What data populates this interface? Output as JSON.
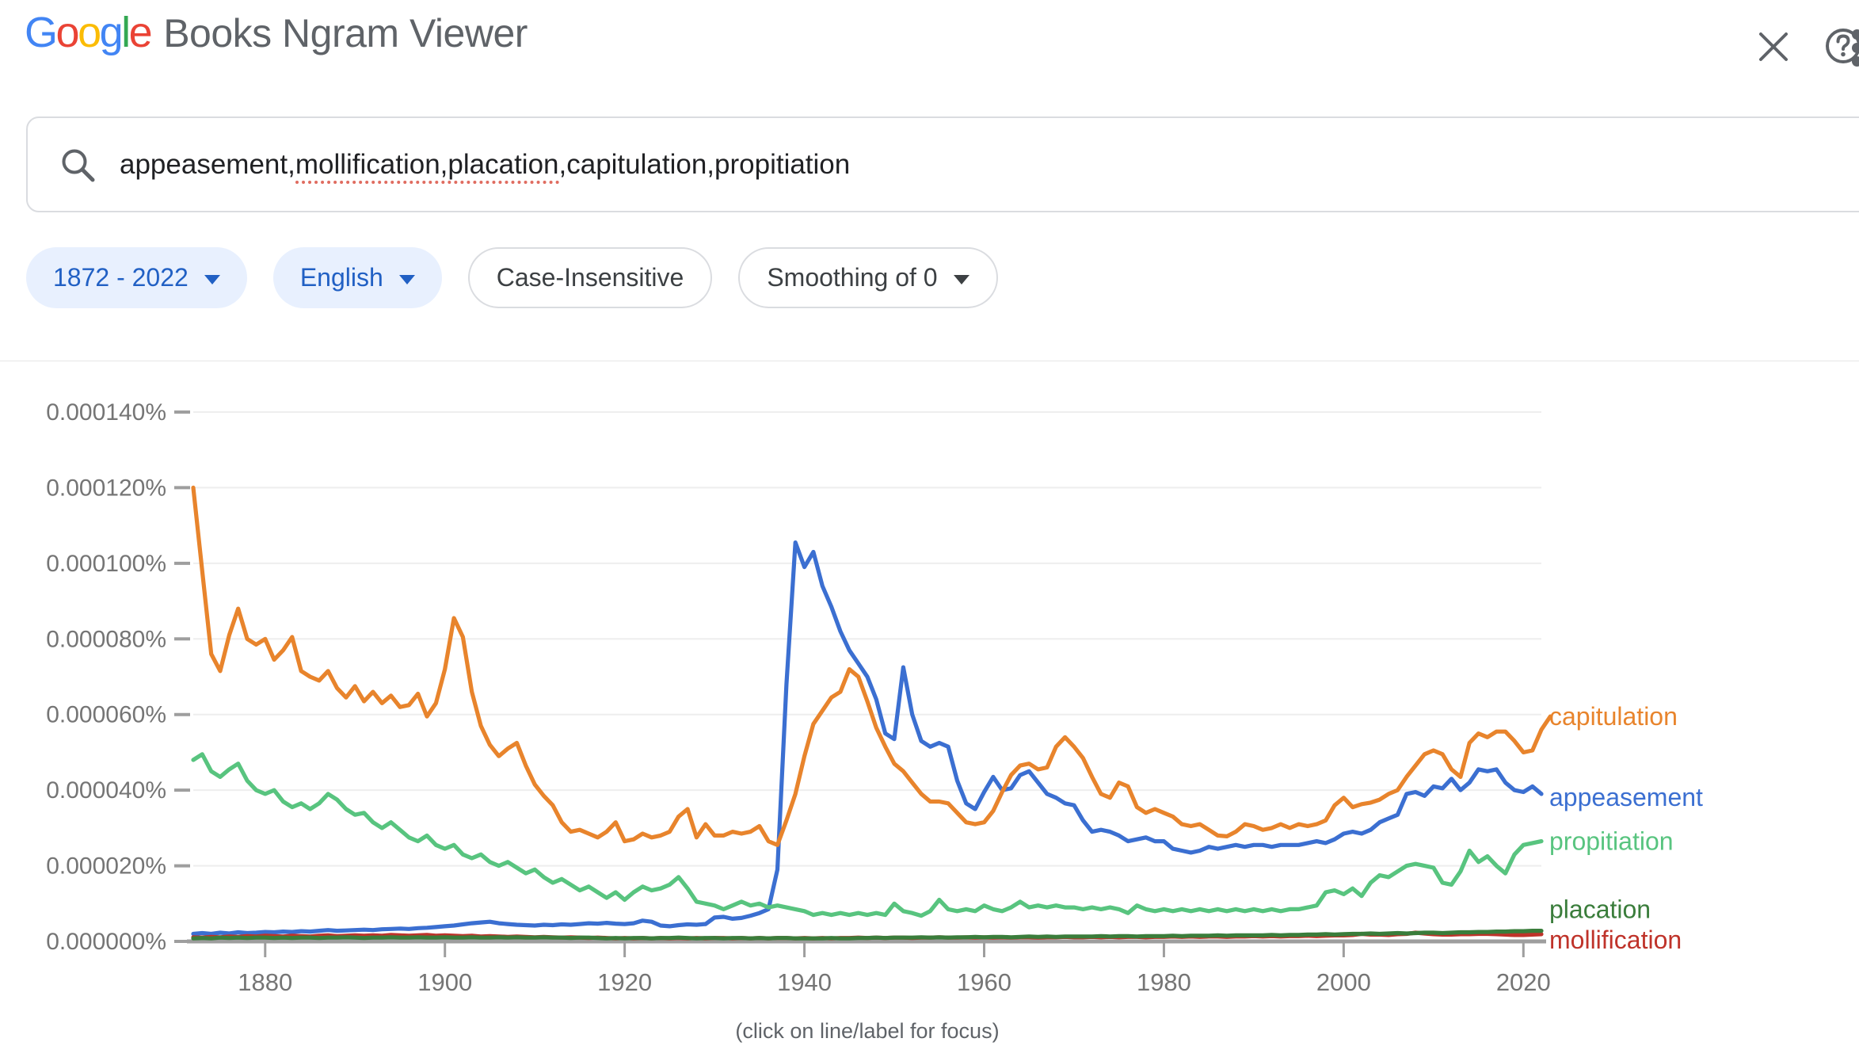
{
  "header": {
    "logo_letters": [
      {
        "ch": "G",
        "color": "#4285F4"
      },
      {
        "ch": "o",
        "color": "#EA4335"
      },
      {
        "ch": "o",
        "color": "#FBBC05"
      },
      {
        "ch": "g",
        "color": "#4285F4"
      },
      {
        "ch": "l",
        "color": "#34A853"
      },
      {
        "ch": "e",
        "color": "#EA4335"
      }
    ],
    "title": "Books Ngram Viewer"
  },
  "search": {
    "query_prefix": "appeasement,",
    "query_misspelled": "mollification,placation",
    "query_suffix": ",capitulation,propitiation"
  },
  "filters": {
    "year_range": "1872 - 2022",
    "corpus": "English",
    "case": "Case-Insensitive",
    "smoothing": "Smoothing of 0"
  },
  "colors": {
    "axis_text": "#757575",
    "axis_line": "#9e9e9e",
    "gridline": "#eeeeee",
    "icon_gray": "#5f6368",
    "chip_blue_bg": "#e8f0fe",
    "chip_blue_text": "#2160c4",
    "spellcheck_red": "#e06c60"
  },
  "chart_data": {
    "type": "line",
    "title": "",
    "xlabel": "",
    "ylabel": "",
    "x_start": 1872,
    "x_end": 2022,
    "x_ticks": [
      1880,
      1900,
      1920,
      1940,
      1960,
      1980,
      2000,
      2020
    ],
    "y_unit": "percent, values in units of 0.000001%",
    "y_max": 140,
    "y_tick_step": 20,
    "y_tick_labels": [
      "0.000000%",
      "0.000020%",
      "0.000040%",
      "0.000060%",
      "0.000080%",
      "0.000100%",
      "0.000120%",
      "0.000140%"
    ],
    "grid": true,
    "legend_position": "right-end-of-line",
    "caption": "(click on line/label for focus)",
    "series": [
      {
        "name": "appeasement",
        "color": "#3b6fd1",
        "values": [
          2,
          2.2,
          2,
          2.3,
          2.1,
          2.4,
          2.2,
          2.3,
          2.5,
          2.4,
          2.6,
          2.5,
          2.7,
          2.6,
          2.8,
          3,
          2.8,
          2.9,
          3,
          3.1,
          3,
          3.2,
          3.3,
          3.4,
          3.3,
          3.5,
          3.6,
          3.8,
          4,
          4.2,
          4.5,
          4.8,
          5,
          5.2,
          4.8,
          4.6,
          4.4,
          4.3,
          4.2,
          4.4,
          4.3,
          4.5,
          4.4,
          4.6,
          4.8,
          4.7,
          4.9,
          4.7,
          4.6,
          4.8,
          5.5,
          5.2,
          4.2,
          4,
          4.3,
          4.5,
          4.4,
          4.6,
          6.3,
          6.5,
          6,
          6.2,
          6.8,
          7.5,
          8.5,
          19,
          68,
          105.5,
          99,
          103,
          94,
          88.5,
          82,
          77,
          73.5,
          70,
          64,
          55,
          53.5,
          72.5,
          60,
          53,
          51.5,
          52.5,
          51.5,
          42.5,
          36.5,
          35,
          39.5,
          43.5,
          40,
          40.5,
          44,
          45,
          42,
          39,
          38,
          36.5,
          36,
          32,
          29,
          29.5,
          29,
          28,
          26.5,
          27,
          27.5,
          26.5,
          26.5,
          24.5,
          24,
          23.5,
          24,
          25,
          24.5,
          25,
          25.5,
          25,
          25.5,
          25.5,
          25,
          25.5,
          25.5,
          25.5,
          26,
          26.5,
          26,
          27,
          28.5,
          29,
          28.5,
          29.5,
          31.5,
          32.5,
          33.5,
          39,
          39.5,
          38.5,
          41,
          40.5,
          43,
          40,
          42,
          45.5,
          45,
          45.5,
          42,
          40,
          39.5,
          41,
          39
        ]
      },
      {
        "name": "mollification",
        "color": "#bf332a",
        "values": [
          1.1,
          1,
          1.2,
          1.1,
          1.3,
          1.2,
          1.4,
          1.3,
          1.5,
          1.4,
          1.3,
          1.5,
          1.4,
          1.3,
          1.5,
          1.6,
          1.4,
          1.5,
          1.6,
          1.5,
          1.6,
          1.5,
          1.7,
          1.6,
          1.5,
          1.6,
          1.7,
          1.5,
          1.6,
          1.5,
          1.4,
          1.5,
          1.3,
          1.4,
          1.3,
          1.2,
          1.3,
          1.2,
          1.1,
          1.2,
          1.1,
          1,
          1.1,
          1,
          0.9,
          1,
          0.9,
          0.8,
          0.9,
          0.8,
          0.9,
          0.8,
          0.9,
          0.8,
          0.9,
          0.8,
          0.9,
          0.8,
          0.9,
          0.9,
          0.8,
          0.9,
          0.8,
          0.9,
          0.8,
          0.9,
          0.9,
          0.8,
          0.9,
          0.8,
          0.9,
          0.8,
          0.9,
          0.9,
          1,
          0.9,
          1,
          0.9,
          1,
          1,
          0.9,
          1,
          1,
          1.1,
          1,
          1,
          1.1,
          1,
          1.1,
          1,
          1.1,
          1,
          1.1,
          1.1,
          1,
          1.1,
          1.1,
          1.2,
          1.1,
          1.1,
          1.2,
          1.1,
          1.2,
          1.1,
          1.2,
          1.2,
          1.1,
          1.2,
          1.2,
          1.3,
          1.2,
          1.3,
          1.2,
          1.3,
          1.3,
          1.2,
          1.3,
          1.3,
          1.4,
          1.3,
          1.4,
          1.3,
          1.4,
          1.4,
          1.5,
          1.4,
          1.5,
          1.6,
          1.6,
          1.7,
          2,
          1.8,
          1.8,
          1.7,
          1.9,
          2,
          2.3,
          2.1,
          1.9,
          1.8,
          1.8,
          1.9,
          1.9,
          2,
          2,
          1.9,
          1.8,
          1.7,
          1.7,
          1.8,
          1.9
        ]
      },
      {
        "name": "placation",
        "color": "#3a7d3b",
        "values": [
          0.8,
          0.9,
          0.8,
          1,
          0.9,
          1,
          0.9,
          1,
          1,
          0.9,
          1,
          0.9,
          1,
          1,
          0.9,
          1,
          1,
          1.1,
          1,
          0.9,
          1,
          1,
          1.1,
          1,
          1,
          1.1,
          1,
          1,
          1.1,
          1,
          1,
          1.1,
          1,
          1,
          1.1,
          1,
          1.1,
          1,
          1,
          1.1,
          1,
          1,
          0.9,
          1,
          1,
          0.9,
          0.8,
          0.9,
          0.8,
          0.9,
          0.9,
          0.8,
          0.9,
          0.9,
          1,
          0.9,
          0.8,
          0.9,
          0.9,
          0.8,
          0.9,
          0.9,
          0.8,
          0.9,
          0.8,
          0.9,
          0.9,
          0.8,
          0.8,
          0.8,
          0.8,
          0.9,
          0.8,
          0.8,
          0.9,
          0.9,
          1,
          0.9,
          1,
          1,
          1,
          1.1,
          1,
          1.1,
          1,
          1.1,
          1.1,
          1.2,
          1.1,
          1.2,
          1.2,
          1.1,
          1.2,
          1.3,
          1.2,
          1.3,
          1.2,
          1.3,
          1.3,
          1.3,
          1.3,
          1.4,
          1.3,
          1.4,
          1.4,
          1.3,
          1.4,
          1.4,
          1.4,
          1.5,
          1.4,
          1.5,
          1.5,
          1.5,
          1.6,
          1.5,
          1.6,
          1.6,
          1.6,
          1.6,
          1.7,
          1.6,
          1.7,
          1.7,
          1.8,
          1.8,
          1.9,
          1.8,
          1.9,
          2,
          2,
          2.1,
          2,
          2.1,
          2.2,
          2.1,
          2.2,
          2.3,
          2.3,
          2.2,
          2.3,
          2.4,
          2.4,
          2.5,
          2.5,
          2.6,
          2.6,
          2.7,
          2.7,
          2.8,
          2.8
        ]
      },
      {
        "name": "capitulation",
        "color": "#e8842c",
        "values": [
          120,
          98,
          76,
          71.5,
          81,
          88,
          80,
          78.5,
          80,
          74.5,
          77,
          80.5,
          71.5,
          70,
          69,
          71.5,
          67,
          64.5,
          67.5,
          63.5,
          66,
          63,
          65,
          62,
          62.5,
          65.5,
          59.5,
          63,
          72,
          85.5,
          80.5,
          66,
          57,
          52,
          49,
          51,
          52.5,
          46.5,
          41.5,
          38.5,
          36,
          31.5,
          29,
          29.5,
          28.5,
          27.5,
          29,
          31.5,
          26.5,
          27,
          28.5,
          27.5,
          28,
          29,
          33,
          35,
          27.5,
          31,
          28,
          28,
          29,
          28.5,
          29,
          30.5,
          26.5,
          25.5,
          32,
          39,
          49,
          57.5,
          61,
          64.5,
          66,
          72,
          70,
          63.5,
          56.5,
          51.5,
          47,
          45,
          42,
          39,
          37,
          37,
          36.5,
          34,
          31.5,
          31,
          31.5,
          34.5,
          39.5,
          44,
          46.5,
          47,
          45.5,
          46,
          51.5,
          54,
          51.5,
          48.5,
          43.5,
          39,
          38,
          42,
          41,
          35.5,
          34,
          35,
          34,
          33,
          31,
          30.5,
          31,
          29.5,
          28,
          27.8,
          29,
          31,
          30.5,
          29.5,
          30,
          31,
          30,
          31,
          30.5,
          31,
          32,
          36,
          38,
          35.5,
          36.3,
          36.7,
          37.5,
          39,
          40,
          43.5,
          46.5,
          49.5,
          50.5,
          49.5,
          45.5,
          43.5,
          52.5,
          55,
          54,
          55.5,
          55.5,
          53,
          50,
          50.5,
          56,
          59.5
        ]
      },
      {
        "name": "propitiation",
        "color": "#58c47f",
        "values": [
          48,
          49.5,
          45,
          43.5,
          45.5,
          47,
          42.5,
          40,
          39,
          40,
          37,
          35.5,
          36.5,
          35,
          36.5,
          39,
          37.5,
          35,
          33.5,
          34,
          31.5,
          30,
          31.5,
          29.5,
          27.5,
          26.5,
          28,
          25.5,
          24.5,
          25.5,
          23,
          22,
          23,
          21,
          20,
          21,
          19.5,
          18,
          19,
          17,
          15.5,
          16.5,
          15,
          13.5,
          14.5,
          13,
          11.5,
          13,
          11,
          13,
          14.5,
          13.5,
          14,
          15,
          17,
          14,
          10.5,
          10,
          9.5,
          8.5,
          9.5,
          10.5,
          9.5,
          10,
          9,
          9.5,
          9,
          8.5,
          8,
          7,
          7.5,
          7,
          7.5,
          7,
          7.5,
          7,
          7.5,
          7,
          10,
          8,
          7.5,
          6.8,
          8,
          11,
          8.5,
          8,
          8.5,
          8,
          9.5,
          8.5,
          8,
          9,
          10.5,
          9,
          9.5,
          9,
          9.5,
          9,
          9,
          8.5,
          9,
          8.5,
          9,
          8.5,
          7.5,
          9.5,
          8.5,
          8,
          8.5,
          8,
          8.5,
          8,
          8.5,
          8,
          8.5,
          8,
          8.5,
          8,
          8.5,
          8,
          8.5,
          8,
          8.5,
          8.5,
          9,
          9.5,
          13,
          13.5,
          12.5,
          14,
          12,
          15.5,
          17.5,
          17,
          18.5,
          20,
          20.5,
          20,
          19.5,
          15.5,
          15,
          18.5,
          24,
          21,
          22.5,
          20,
          18,
          23,
          25.5,
          26,
          26.5
        ]
      }
    ]
  }
}
